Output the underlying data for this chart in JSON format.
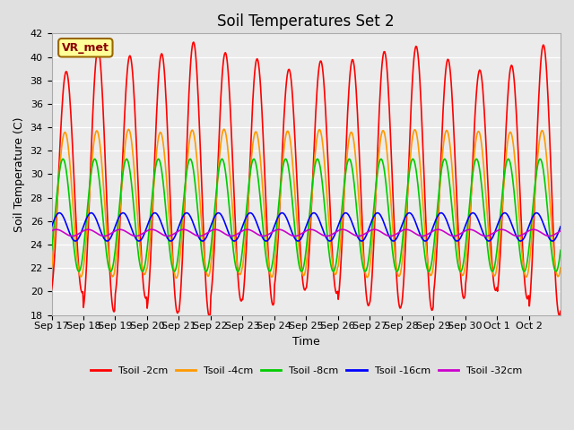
{
  "title": "Soil Temperatures Set 2",
  "xlabel": "Time",
  "ylabel": "Soil Temperature (C)",
  "ylim": [
    18,
    42
  ],
  "yticks": [
    18,
    20,
    22,
    24,
    26,
    28,
    30,
    32,
    34,
    36,
    38,
    40,
    42
  ],
  "xtick_labels": [
    "Sep 17",
    "Sep 18",
    "Sep 19",
    "Sep 20",
    "Sep 21",
    "Sep 22",
    "Sep 23",
    "Sep 24",
    "Sep 25",
    "Sep 26",
    "Sep 27",
    "Sep 28",
    "Sep 29",
    "Sep 30",
    "Oct 1",
    "Oct 2"
  ],
  "series_colors": [
    "#ff0000",
    "#ff9900",
    "#00cc00",
    "#0000ff",
    "#cc00cc"
  ],
  "series_labels": [
    "Tsoil -2cm",
    "Tsoil -4cm",
    "Tsoil -8cm",
    "Tsoil -16cm",
    "Tsoil -32cm"
  ],
  "background_color": "#e0e0e0",
  "plot_bg_color": "#ebebeb",
  "annotation_text": "VR_met",
  "annotation_bg": "#ffff99",
  "annotation_border": "#996600",
  "n_days": 16,
  "points_per_day": 48,
  "title_fontsize": 12,
  "axis_label_fontsize": 9,
  "tick_fontsize": 8
}
